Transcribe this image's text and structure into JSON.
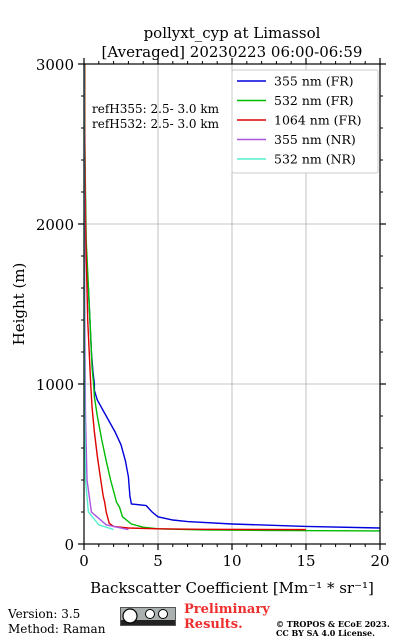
{
  "chart_data": {
    "type": "line",
    "title": "pollyxt_cyp at Limassol",
    "subtitle": "[Averaged] 20230223 06:00-06:59",
    "xlabel": "Backscatter Coefficient [Mm⁻¹ * sr⁻¹]",
    "ylabel": "Height (m)",
    "xlim": [
      0,
      20
    ],
    "ylim": [
      0,
      3000
    ],
    "xticks": [
      "0",
      "5",
      "10",
      "15",
      "20"
    ],
    "yticks": [
      "0",
      "1000",
      "2000",
      "3000"
    ],
    "grid": true,
    "legend_position": "top-right",
    "annotations": [
      "refH355:  2.5- 3.0 km",
      "refH532:  2.5- 3.0 km"
    ],
    "series": [
      {
        "name": "355 nm (FR)",
        "color": "#0000dd",
        "points": [
          [
            20,
            100
          ],
          [
            15,
            110
          ],
          [
            10,
            125
          ],
          [
            7,
            140
          ],
          [
            6,
            150
          ],
          [
            5,
            170
          ],
          [
            4.6,
            200
          ],
          [
            4.2,
            240
          ],
          [
            3.2,
            250
          ],
          [
            3.1,
            300
          ],
          [
            3.0,
            420
          ],
          [
            2.8,
            520
          ],
          [
            2.5,
            620
          ],
          [
            2.1,
            700
          ],
          [
            1.5,
            800
          ],
          [
            0.9,
            900
          ],
          [
            0.7,
            960
          ],
          [
            0.7,
            1000
          ],
          [
            0.6,
            1080
          ],
          [
            0.5,
            1200
          ],
          [
            0.4,
            1400
          ],
          [
            0.3,
            1600
          ],
          [
            0.15,
            1800
          ],
          [
            0.1,
            2100
          ],
          [
            0.05,
            2400
          ],
          [
            0.05,
            2700
          ],
          [
            0.05,
            3000
          ]
        ]
      },
      {
        "name": "532 nm (FR)",
        "color": "#00bb00",
        "points": [
          [
            20,
            82
          ],
          [
            12,
            85
          ],
          [
            8,
            88
          ],
          [
            5,
            95
          ],
          [
            4,
            105
          ],
          [
            3.2,
            125
          ],
          [
            2.6,
            170
          ],
          [
            2.4,
            230
          ],
          [
            2.2,
            260
          ],
          [
            1.8,
            400
          ],
          [
            1.5,
            520
          ],
          [
            1.2,
            650
          ],
          [
            0.9,
            800
          ],
          [
            0.7,
            920
          ],
          [
            0.65,
            1000
          ],
          [
            0.55,
            1100
          ],
          [
            0.45,
            1300
          ],
          [
            0.35,
            1500
          ],
          [
            0.25,
            1700
          ],
          [
            0.15,
            1900
          ],
          [
            0.1,
            2200
          ],
          [
            0.06,
            2500
          ],
          [
            0.05,
            3000
          ]
        ]
      },
      {
        "name": "1064 nm (FR)",
        "color": "#dd0000",
        "points": [
          [
            15,
            90
          ],
          [
            8,
            92
          ],
          [
            5,
            95
          ],
          [
            3,
            100
          ],
          [
            2.0,
            110
          ],
          [
            1.7,
            130
          ],
          [
            1.5,
            200
          ],
          [
            1.4,
            260
          ],
          [
            1.3,
            300
          ],
          [
            1.1,
            420
          ],
          [
            0.9,
            550
          ],
          [
            0.7,
            700
          ],
          [
            0.55,
            850
          ],
          [
            0.45,
            1000
          ],
          [
            0.35,
            1200
          ],
          [
            0.25,
            1400
          ],
          [
            0.2,
            1600
          ],
          [
            0.12,
            1900
          ],
          [
            0.08,
            2200
          ],
          [
            0.05,
            2600
          ],
          [
            0.04,
            3000
          ]
        ]
      },
      {
        "name": "355 nm (NR)",
        "color": "#aa55dd",
        "points": [
          [
            3,
            90
          ],
          [
            1.5,
            120
          ],
          [
            0.5,
            200
          ],
          [
            0.2,
            400
          ],
          [
            0.1,
            800
          ],
          [
            0.05,
            1500
          ],
          [
            0.02,
            3000
          ]
        ]
      },
      {
        "name": "532 nm (NR)",
        "color": "#55eecc",
        "points": [
          [
            2,
            90
          ],
          [
            1,
            120
          ],
          [
            0.3,
            200
          ],
          [
            0.1,
            400
          ],
          [
            0.05,
            800
          ],
          [
            0.02,
            1500
          ],
          [
            0.01,
            3000
          ]
        ]
      }
    ]
  },
  "footer": {
    "version": "Version: 3.5",
    "method": "Method: Raman",
    "preliminary_line1": "Preliminary",
    "preliminary_line2": "Results.",
    "copyright_line1": "© TROPOS & ECoE 2023.",
    "copyright_line2": "CC BY SA 4.0 License.",
    "badge_icon": "cc-by-sa-icon"
  }
}
